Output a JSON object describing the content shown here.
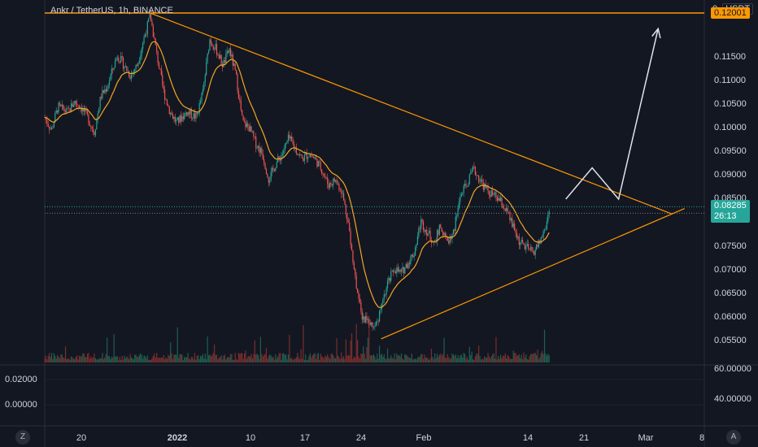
{
  "header": {
    "symbol_title": "Ankr / TetherUS, 1h, BINANCE",
    "price_display": "0",
    "currency": "USDT"
  },
  "price_axis": {
    "labels": [
      "0.11500",
      "0.11000",
      "0.10500",
      "0.10000",
      "0.09500",
      "0.09000",
      "0.08500",
      "0.07500",
      "0.07000",
      "0.06500",
      "0.06000",
      "0.05500"
    ],
    "resistance_tag": "0.12001",
    "last_price_tag": "0.08285",
    "countdown": "26:13"
  },
  "time_axis": {
    "labels": [
      "20",
      "2022",
      "10",
      "17",
      "24",
      "Feb",
      "14",
      "21",
      "Mar",
      "8"
    ]
  },
  "indicator_pane": {
    "left_labels": [
      "0.02000",
      "0.00000"
    ],
    "right_labels": [
      "60.00000",
      "40.00000"
    ]
  },
  "buttons": {
    "reset_zoom": "Z",
    "auto_scale": "A"
  },
  "colors": {
    "background": "#131722",
    "up_candle": "#26a69a",
    "down_candle": "#ef5350",
    "moving_average": "#f5a623",
    "trendline": "#ff9800",
    "projection": "#e0e3eb"
  },
  "chart_data": {
    "type": "candlestick",
    "title": "Ankr / TetherUS, 1h, BINANCE",
    "x": [
      "20",
      "2022",
      "10",
      "17",
      "24",
      "Feb",
      "14",
      "21",
      "Mar",
      "8"
    ],
    "ylim": [
      0.0525,
      0.1225
    ],
    "resistance_level": 0.12001,
    "last_price": 0.08285,
    "price_path": [
      {
        "t": 0,
        "y": 0.1
      },
      {
        "t": 2,
        "y": 0.0975
      },
      {
        "t": 4,
        "y": 0.102
      },
      {
        "t": 7,
        "y": 0.101
      },
      {
        "t": 9,
        "y": 0.103
      },
      {
        "t": 11,
        "y": 0.102
      },
      {
        "t": 13,
        "y": 0.1
      },
      {
        "t": 15,
        "y": 0.097
      },
      {
        "t": 17,
        "y": 0.104
      },
      {
        "t": 19,
        "y": 0.106
      },
      {
        "t": 22,
        "y": 0.112
      },
      {
        "t": 24,
        "y": 0.11
      },
      {
        "t": 26,
        "y": 0.108
      },
      {
        "t": 28,
        "y": 0.11
      },
      {
        "t": 30,
        "y": 0.115
      },
      {
        "t": 32,
        "y": 0.1195
      },
      {
        "t": 34,
        "y": 0.112
      },
      {
        "t": 36,
        "y": 0.105
      },
      {
        "t": 38,
        "y": 0.101
      },
      {
        "t": 40,
        "y": 0.099
      },
      {
        "t": 43,
        "y": 0.101
      },
      {
        "t": 46,
        "y": 0.1
      },
      {
        "t": 48,
        "y": 0.105
      },
      {
        "t": 50,
        "y": 0.115
      },
      {
        "t": 52,
        "y": 0.113
      },
      {
        "t": 54,
        "y": 0.11
      },
      {
        "t": 56,
        "y": 0.113
      },
      {
        "t": 58,
        "y": 0.108
      },
      {
        "t": 60,
        "y": 0.099
      },
      {
        "t": 62,
        "y": 0.098
      },
      {
        "t": 64,
        "y": 0.095
      },
      {
        "t": 66,
        "y": 0.093
      },
      {
        "t": 68,
        "y": 0.088
      },
      {
        "t": 70,
        "y": 0.091
      },
      {
        "t": 72,
        "y": 0.093
      },
      {
        "t": 74,
        "y": 0.096
      },
      {
        "t": 76,
        "y": 0.094
      },
      {
        "t": 78,
        "y": 0.092
      },
      {
        "t": 80,
        "y": 0.093
      },
      {
        "t": 82,
        "y": 0.092
      },
      {
        "t": 84,
        "y": 0.09
      },
      {
        "t": 86,
        "y": 0.087
      },
      {
        "t": 88,
        "y": 0.088
      },
      {
        "t": 90,
        "y": 0.086
      },
      {
        "t": 92,
        "y": 0.08
      },
      {
        "t": 94,
        "y": 0.07
      },
      {
        "t": 96,
        "y": 0.062
      },
      {
        "t": 98,
        "y": 0.061
      },
      {
        "t": 100,
        "y": 0.06
      },
      {
        "t": 102,
        "y": 0.063
      },
      {
        "t": 104,
        "y": 0.068
      },
      {
        "t": 106,
        "y": 0.071
      },
      {
        "t": 108,
        "y": 0.07
      },
      {
        "t": 110,
        "y": 0.072
      },
      {
        "t": 112,
        "y": 0.074
      },
      {
        "t": 114,
        "y": 0.08
      },
      {
        "t": 116,
        "y": 0.078
      },
      {
        "t": 118,
        "y": 0.076
      },
      {
        "t": 120,
        "y": 0.079
      },
      {
        "t": 122,
        "y": 0.076
      },
      {
        "t": 124,
        "y": 0.078
      },
      {
        "t": 126,
        "y": 0.085
      },
      {
        "t": 128,
        "y": 0.087
      },
      {
        "t": 130,
        "y": 0.09
      },
      {
        "t": 132,
        "y": 0.088
      },
      {
        "t": 134,
        "y": 0.086
      },
      {
        "t": 136,
        "y": 0.085
      },
      {
        "t": 138,
        "y": 0.084
      },
      {
        "t": 140,
        "y": 0.082
      },
      {
        "t": 142,
        "y": 0.079
      },
      {
        "t": 144,
        "y": 0.076
      },
      {
        "t": 146,
        "y": 0.075
      },
      {
        "t": 148,
        "y": 0.074
      },
      {
        "t": 150,
        "y": 0.076
      },
      {
        "t": 152,
        "y": 0.079
      },
      {
        "t": 153,
        "y": 0.08285
      }
    ],
    "lines": {
      "descending_trendline": [
        {
          "t": 32,
          "y": 0.12
        },
        {
          "t": 190,
          "y": 0.0815
        }
      ],
      "ascending_trendline": [
        {
          "t": 102,
          "y": 0.0575
        },
        {
          "t": 194,
          "y": 0.0825
        }
      ],
      "projection_path": [
        {
          "t": 158,
          "y": 0.0843
        },
        {
          "t": 166,
          "y": 0.0903
        },
        {
          "t": 174,
          "y": 0.0843
        },
        {
          "t": 186,
          "y": 0.117
        }
      ]
    }
  }
}
